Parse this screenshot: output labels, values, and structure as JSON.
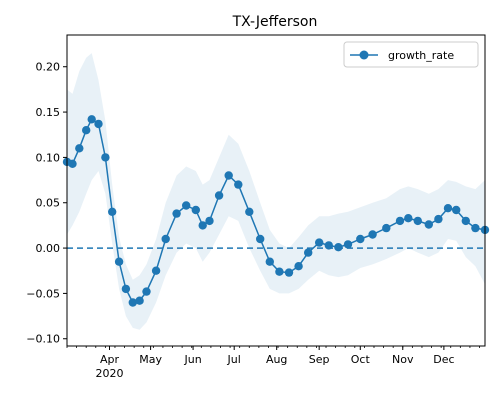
{
  "chart_data": {
    "type": "line",
    "title": "TX-Jefferson",
    "xlabel": "",
    "ylabel": "",
    "x_range": [
      "2020-03-01",
      "2020-12-31"
    ],
    "ylim": [
      -0.108,
      0.235
    ],
    "grid": false,
    "legend": {
      "placement": "top-right"
    },
    "reference_line": {
      "y": 0.0,
      "style": "dashed",
      "color": "#1f77b4"
    },
    "x_ticks": [
      {
        "date": "2020-04-01",
        "label": "Apr",
        "sublabel": "2020"
      },
      {
        "date": "2020-05-01",
        "label": "May"
      },
      {
        "date": "2020-06-01",
        "label": "Jun"
      },
      {
        "date": "2020-07-01",
        "label": "Jul"
      },
      {
        "date": "2020-08-01",
        "label": "Aug"
      },
      {
        "date": "2020-09-01",
        "label": "Sep"
      },
      {
        "date": "2020-10-01",
        "label": "Oct"
      },
      {
        "date": "2020-11-01",
        "label": "Nov"
      },
      {
        "date": "2020-12-01",
        "label": "Dec"
      }
    ],
    "y_ticks": [
      {
        "value": -0.1,
        "label": "−0.10"
      },
      {
        "value": -0.05,
        "label": "−0.05"
      },
      {
        "value": 0.0,
        "label": "0.00"
      },
      {
        "value": 0.05,
        "label": "0.05"
      },
      {
        "value": 0.1,
        "label": "0.10"
      },
      {
        "value": 0.15,
        "label": "0.15"
      },
      {
        "value": 0.2,
        "label": "0.20"
      }
    ],
    "series": [
      {
        "name": "growth_rate",
        "color": "#1f77b4",
        "band_color": "#1f77b4",
        "points": [
          {
            "date": "2020-03-01",
            "y": 0.095,
            "lo": 0.015,
            "hi": 0.175
          },
          {
            "date": "2020-03-05",
            "y": 0.093,
            "lo": 0.025,
            "hi": 0.17
          },
          {
            "date": "2020-03-10",
            "y": 0.11,
            "lo": 0.04,
            "hi": 0.195
          },
          {
            "date": "2020-03-15",
            "y": 0.13,
            "lo": 0.06,
            "hi": 0.21
          },
          {
            "date": "2020-03-19",
            "y": 0.142,
            "lo": 0.075,
            "hi": 0.215
          },
          {
            "date": "2020-03-24",
            "y": 0.137,
            "lo": 0.085,
            "hi": 0.185
          },
          {
            "date": "2020-03-29",
            "y": 0.1,
            "lo": 0.06,
            "hi": 0.14
          },
          {
            "date": "2020-04-03",
            "y": 0.04,
            "lo": 0.005,
            "hi": 0.07
          },
          {
            "date": "2020-04-08",
            "y": -0.015,
            "lo": -0.045,
            "hi": 0.012
          },
          {
            "date": "2020-04-13",
            "y": -0.045,
            "lo": -0.075,
            "hi": -0.018
          },
          {
            "date": "2020-04-18",
            "y": -0.06,
            "lo": -0.088,
            "hi": -0.035
          },
          {
            "date": "2020-04-23",
            "y": -0.058,
            "lo": -0.09,
            "hi": -0.03
          },
          {
            "date": "2020-04-28",
            "y": -0.048,
            "lo": -0.082,
            "hi": -0.018
          },
          {
            "date": "2020-05-05",
            "y": -0.025,
            "lo": -0.06,
            "hi": 0.01
          },
          {
            "date": "2020-05-12",
            "y": 0.01,
            "lo": -0.03,
            "hi": 0.05
          },
          {
            "date": "2020-05-20",
            "y": 0.038,
            "lo": -0.005,
            "hi": 0.08
          },
          {
            "date": "2020-05-27",
            "y": 0.047,
            "lo": 0.005,
            "hi": 0.09
          },
          {
            "date": "2020-06-03",
            "y": 0.042,
            "lo": 0.0,
            "hi": 0.085
          },
          {
            "date": "2020-06-08",
            "y": 0.025,
            "lo": -0.015,
            "hi": 0.07
          },
          {
            "date": "2020-06-13",
            "y": 0.03,
            "lo": -0.005,
            "hi": 0.075
          },
          {
            "date": "2020-06-20",
            "y": 0.058,
            "lo": 0.015,
            "hi": 0.1
          },
          {
            "date": "2020-06-27",
            "y": 0.08,
            "lo": 0.035,
            "hi": 0.125
          },
          {
            "date": "2020-07-04",
            "y": 0.07,
            "lo": 0.03,
            "hi": 0.115
          },
          {
            "date": "2020-07-12",
            "y": 0.04,
            "lo": 0.0,
            "hi": 0.085
          },
          {
            "date": "2020-07-20",
            "y": 0.01,
            "lo": -0.025,
            "hi": 0.05
          },
          {
            "date": "2020-07-27",
            "y": -0.015,
            "lo": -0.045,
            "hi": 0.02
          },
          {
            "date": "2020-08-03",
            "y": -0.026,
            "lo": -0.05,
            "hi": 0.005
          },
          {
            "date": "2020-08-10",
            "y": -0.027,
            "lo": -0.05,
            "hi": 0.0
          },
          {
            "date": "2020-08-17",
            "y": -0.02,
            "lo": -0.045,
            "hi": 0.012
          },
          {
            "date": "2020-08-24",
            "y": -0.005,
            "lo": -0.035,
            "hi": 0.025
          },
          {
            "date": "2020-09-01",
            "y": 0.006,
            "lo": -0.025,
            "hi": 0.035
          },
          {
            "date": "2020-09-08",
            "y": 0.003,
            "lo": -0.03,
            "hi": 0.035
          },
          {
            "date": "2020-09-15",
            "y": 0.001,
            "lo": -0.032,
            "hi": 0.038
          },
          {
            "date": "2020-09-22",
            "y": 0.004,
            "lo": -0.03,
            "hi": 0.04
          },
          {
            "date": "2020-10-01",
            "y": 0.01,
            "lo": -0.022,
            "hi": 0.045
          },
          {
            "date": "2020-10-10",
            "y": 0.015,
            "lo": -0.018,
            "hi": 0.05
          },
          {
            "date": "2020-10-20",
            "y": 0.022,
            "lo": -0.012,
            "hi": 0.055
          },
          {
            "date": "2020-10-30",
            "y": 0.03,
            "lo": -0.005,
            "hi": 0.065
          },
          {
            "date": "2020-11-05",
            "y": 0.033,
            "lo": 0.0,
            "hi": 0.068
          },
          {
            "date": "2020-11-12",
            "y": 0.03,
            "lo": -0.005,
            "hi": 0.065
          },
          {
            "date": "2020-11-20",
            "y": 0.026,
            "lo": -0.01,
            "hi": 0.06
          },
          {
            "date": "2020-11-27",
            "y": 0.032,
            "lo": -0.005,
            "hi": 0.065
          },
          {
            "date": "2020-12-04",
            "y": 0.044,
            "lo": 0.01,
            "hi": 0.075
          },
          {
            "date": "2020-12-10",
            "y": 0.042,
            "lo": 0.008,
            "hi": 0.073
          },
          {
            "date": "2020-12-17",
            "y": 0.03,
            "lo": -0.01,
            "hi": 0.068
          },
          {
            "date": "2020-12-24",
            "y": 0.022,
            "lo": -0.02,
            "hi": 0.065
          },
          {
            "date": "2020-12-31",
            "y": 0.02,
            "lo": -0.04,
            "hi": 0.075
          }
        ]
      }
    ]
  }
}
